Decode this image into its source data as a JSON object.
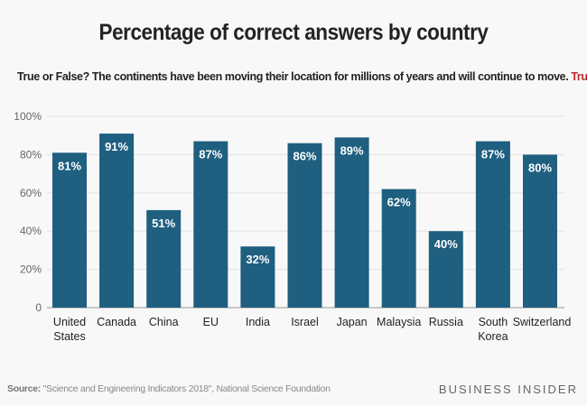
{
  "chart_data": {
    "type": "bar",
    "title": "Percentage of correct answers by country",
    "subtitle": "True or False? The continents have been moving their location for millions of years and will continue to move.",
    "subtitle_answer": "True.",
    "categories": [
      "United States",
      "Canada",
      "China",
      "EU",
      "India",
      "Israel",
      "Japan",
      "Malaysia",
      "Russia",
      "South Korea",
      "Switzerland"
    ],
    "category_lines": [
      [
        "United",
        "States"
      ],
      [
        "Canada"
      ],
      [
        "China"
      ],
      [
        "EU"
      ],
      [
        "India"
      ],
      [
        "Israel"
      ],
      [
        "Japan"
      ],
      [
        "Malaysia"
      ],
      [
        "Russia"
      ],
      [
        "South",
        "Korea"
      ],
      [
        "Switzerland"
      ]
    ],
    "values": [
      81,
      91,
      51,
      87,
      32,
      86,
      89,
      62,
      40,
      87,
      80
    ],
    "data_labels": [
      "81%",
      "91%",
      "51%",
      "87%",
      "32%",
      "86%",
      "89%",
      "62%",
      "40%",
      "87%",
      "80%"
    ],
    "ylim": [
      0,
      100
    ],
    "yticks": [
      0,
      20,
      40,
      60,
      80,
      100
    ],
    "ytick_labels": [
      "0",
      "20%",
      "40%",
      "60%",
      "80%",
      "100%"
    ],
    "grid": true,
    "xlabel": "",
    "ylabel": "",
    "colors": {
      "bar": "#1f5f80",
      "answer": "#c0262d"
    }
  },
  "footer": {
    "source_label": "Source:",
    "source_text": " \"Science and Engineering Indicators 2018\", National Science Foundation",
    "brand": "BUSINESS INSIDER"
  }
}
